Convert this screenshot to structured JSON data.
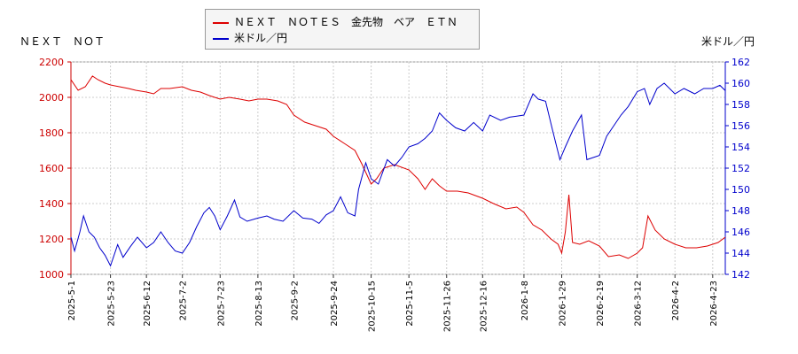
{
  "chart_data": {
    "type": "line",
    "left_corner_label": "ＮＥＸＴ　ＮＯＴ",
    "right_corner_label": "米ドル／円",
    "legend_placement": "top-center",
    "grid": true,
    "x_dates": [
      "2025-5-1",
      "2025-5-23",
      "2025-6-12",
      "2025-7-2",
      "2025-7-23",
      "2025-8-13",
      "2025-9-2",
      "2025-9-24",
      "2025-10-15",
      "2025-11-5",
      "2025-11-26",
      "2025-12-16",
      "2026-1-8",
      "2026-1-29",
      "2026-2-19",
      "2026-3-12",
      "2026-4-2",
      "2026-4-23"
    ],
    "xlim": [
      "2025-05-01",
      "2026-04-30"
    ],
    "y_left": {
      "lim": [
        1000,
        2200
      ],
      "ticks": [
        1000,
        1200,
        1400,
        1600,
        1800,
        2000,
        2200
      ]
    },
    "y_right": {
      "lim": [
        142,
        162
      ],
      "ticks": [
        142,
        144,
        146,
        148,
        150,
        152,
        154,
        156,
        158,
        160,
        162
      ]
    },
    "series": [
      {
        "name": "ＮＥＸＴ　ＮＯＴＥＳ　金先物　ベア　ＥＴＮ",
        "axis": "left",
        "color": "#dd0000",
        "points": [
          [
            "2025-05-01",
            2100
          ],
          [
            "2025-05-05",
            2040
          ],
          [
            "2025-05-09",
            2060
          ],
          [
            "2025-05-13",
            2120
          ],
          [
            "2025-05-16",
            2100
          ],
          [
            "2025-05-20",
            2080
          ],
          [
            "2025-05-23",
            2070
          ],
          [
            "2025-05-28",
            2060
          ],
          [
            "2025-06-02",
            2050
          ],
          [
            "2025-06-06",
            2040
          ],
          [
            "2025-06-12",
            2030
          ],
          [
            "2025-06-16",
            2020
          ],
          [
            "2025-06-20",
            2050
          ],
          [
            "2025-06-25",
            2050
          ],
          [
            "2025-07-02",
            2060
          ],
          [
            "2025-07-07",
            2040
          ],
          [
            "2025-07-12",
            2030
          ],
          [
            "2025-07-17",
            2010
          ],
          [
            "2025-07-23",
            1990
          ],
          [
            "2025-07-28",
            2000
          ],
          [
            "2025-08-03",
            1990
          ],
          [
            "2025-08-08",
            1980
          ],
          [
            "2025-08-13",
            1990
          ],
          [
            "2025-08-18",
            1990
          ],
          [
            "2025-08-24",
            1980
          ],
          [
            "2025-08-29",
            1960
          ],
          [
            "2025-09-02",
            1900
          ],
          [
            "2025-09-08",
            1860
          ],
          [
            "2025-09-14",
            1840
          ],
          [
            "2025-09-20",
            1820
          ],
          [
            "2025-09-24",
            1780
          ],
          [
            "2025-09-30",
            1740
          ],
          [
            "2025-10-06",
            1700
          ],
          [
            "2025-10-10",
            1620
          ],
          [
            "2025-10-15",
            1510
          ],
          [
            "2025-10-18",
            1540
          ],
          [
            "2025-10-22",
            1600
          ],
          [
            "2025-10-28",
            1620
          ],
          [
            "2025-11-05",
            1590
          ],
          [
            "2025-11-10",
            1540
          ],
          [
            "2025-11-14",
            1480
          ],
          [
            "2025-11-18",
            1540
          ],
          [
            "2025-11-22",
            1500
          ],
          [
            "2025-11-26",
            1470
          ],
          [
            "2025-12-02",
            1470
          ],
          [
            "2025-12-08",
            1460
          ],
          [
            "2025-12-16",
            1430
          ],
          [
            "2025-12-22",
            1400
          ],
          [
            "2025-12-29",
            1370
          ],
          [
            "2026-01-04",
            1380
          ],
          [
            "2026-01-08",
            1350
          ],
          [
            "2026-01-13",
            1280
          ],
          [
            "2026-01-18",
            1250
          ],
          [
            "2026-01-23",
            1200
          ],
          [
            "2026-01-27",
            1170
          ],
          [
            "2026-01-29",
            1120
          ],
          [
            "2026-01-31",
            1240
          ],
          [
            "2026-02-02",
            1450
          ],
          [
            "2026-02-04",
            1180
          ],
          [
            "2026-02-08",
            1170
          ],
          [
            "2026-02-13",
            1190
          ],
          [
            "2026-02-19",
            1160
          ],
          [
            "2026-02-24",
            1100
          ],
          [
            "2026-03-02",
            1110
          ],
          [
            "2026-03-07",
            1090
          ],
          [
            "2026-03-12",
            1120
          ],
          [
            "2026-03-15",
            1150
          ],
          [
            "2026-03-18",
            1330
          ],
          [
            "2026-03-22",
            1250
          ],
          [
            "2026-03-27",
            1200
          ],
          [
            "2026-04-02",
            1170
          ],
          [
            "2026-04-08",
            1150
          ],
          [
            "2026-04-14",
            1150
          ],
          [
            "2026-04-20",
            1160
          ],
          [
            "2026-04-26",
            1180
          ],
          [
            "2026-04-30",
            1210
          ]
        ]
      },
      {
        "name": "米ドル／円",
        "axis": "right",
        "color": "#0000cc",
        "points": [
          [
            "2025-05-01",
            145.5
          ],
          [
            "2025-05-03",
            144.2
          ],
          [
            "2025-05-06",
            146.0
          ],
          [
            "2025-05-08",
            147.5
          ],
          [
            "2025-05-11",
            146.0
          ],
          [
            "2025-05-14",
            145.5
          ],
          [
            "2025-05-17",
            144.5
          ],
          [
            "2025-05-20",
            143.8
          ],
          [
            "2025-05-23",
            142.8
          ],
          [
            "2025-05-27",
            144.8
          ],
          [
            "2025-05-30",
            143.6
          ],
          [
            "2025-06-03",
            144.6
          ],
          [
            "2025-06-07",
            145.5
          ],
          [
            "2025-06-12",
            144.5
          ],
          [
            "2025-06-16",
            145.0
          ],
          [
            "2025-06-20",
            146.0
          ],
          [
            "2025-06-24",
            145.0
          ],
          [
            "2025-06-28",
            144.2
          ],
          [
            "2025-07-02",
            144.0
          ],
          [
            "2025-07-06",
            145.0
          ],
          [
            "2025-07-10",
            146.5
          ],
          [
            "2025-07-14",
            147.8
          ],
          [
            "2025-07-17",
            148.3
          ],
          [
            "2025-07-20",
            147.5
          ],
          [
            "2025-07-23",
            146.2
          ],
          [
            "2025-07-27",
            147.5
          ],
          [
            "2025-07-31",
            149.0
          ],
          [
            "2025-08-03",
            147.4
          ],
          [
            "2025-08-07",
            147.0
          ],
          [
            "2025-08-13",
            147.3
          ],
          [
            "2025-08-18",
            147.5
          ],
          [
            "2025-08-22",
            147.2
          ],
          [
            "2025-08-27",
            147.0
          ],
          [
            "2025-09-02",
            148.0
          ],
          [
            "2025-09-07",
            147.3
          ],
          [
            "2025-09-12",
            147.2
          ],
          [
            "2025-09-16",
            146.8
          ],
          [
            "2025-09-20",
            147.6
          ],
          [
            "2025-09-24",
            148.0
          ],
          [
            "2025-09-28",
            149.3
          ],
          [
            "2025-10-02",
            147.8
          ],
          [
            "2025-10-06",
            147.5
          ],
          [
            "2025-10-08",
            150.0
          ],
          [
            "2025-10-12",
            152.5
          ],
          [
            "2025-10-15",
            151.0
          ],
          [
            "2025-10-19",
            150.5
          ],
          [
            "2025-10-24",
            152.8
          ],
          [
            "2025-10-28",
            152.2
          ],
          [
            "2025-11-01",
            153.0
          ],
          [
            "2025-11-05",
            154.0
          ],
          [
            "2025-11-10",
            154.3
          ],
          [
            "2025-11-14",
            154.8
          ],
          [
            "2025-11-18",
            155.5
          ],
          [
            "2025-11-22",
            157.2
          ],
          [
            "2025-11-26",
            156.5
          ],
          [
            "2025-12-01",
            155.8
          ],
          [
            "2025-12-06",
            155.5
          ],
          [
            "2025-12-11",
            156.3
          ],
          [
            "2025-12-16",
            155.5
          ],
          [
            "2025-12-20",
            157.0
          ],
          [
            "2025-12-26",
            156.5
          ],
          [
            "2025-12-31",
            156.8
          ],
          [
            "2026-01-04",
            156.9
          ],
          [
            "2026-01-08",
            157.0
          ],
          [
            "2026-01-13",
            159.0
          ],
          [
            "2026-01-16",
            158.5
          ],
          [
            "2026-01-20",
            158.3
          ],
          [
            "2026-01-24",
            155.5
          ],
          [
            "2026-01-28",
            152.8
          ],
          [
            "2026-01-31",
            154.0
          ],
          [
            "2026-02-04",
            155.5
          ],
          [
            "2026-02-09",
            157.0
          ],
          [
            "2026-02-12",
            152.8
          ],
          [
            "2026-02-19",
            153.2
          ],
          [
            "2026-02-23",
            155.0
          ],
          [
            "2026-02-27",
            156.0
          ],
          [
            "2026-03-03",
            157.0
          ],
          [
            "2026-03-07",
            157.8
          ],
          [
            "2026-03-12",
            159.2
          ],
          [
            "2026-03-16",
            159.5
          ],
          [
            "2026-03-19",
            158.0
          ],
          [
            "2026-03-23",
            159.5
          ],
          [
            "2026-03-27",
            160.0
          ],
          [
            "2026-04-02",
            159.0
          ],
          [
            "2026-04-07",
            159.5
          ],
          [
            "2026-04-13",
            159.0
          ],
          [
            "2026-04-18",
            159.5
          ],
          [
            "2026-04-23",
            159.5
          ],
          [
            "2026-04-27",
            159.8
          ],
          [
            "2026-04-30",
            159.3
          ]
        ]
      }
    ]
  }
}
